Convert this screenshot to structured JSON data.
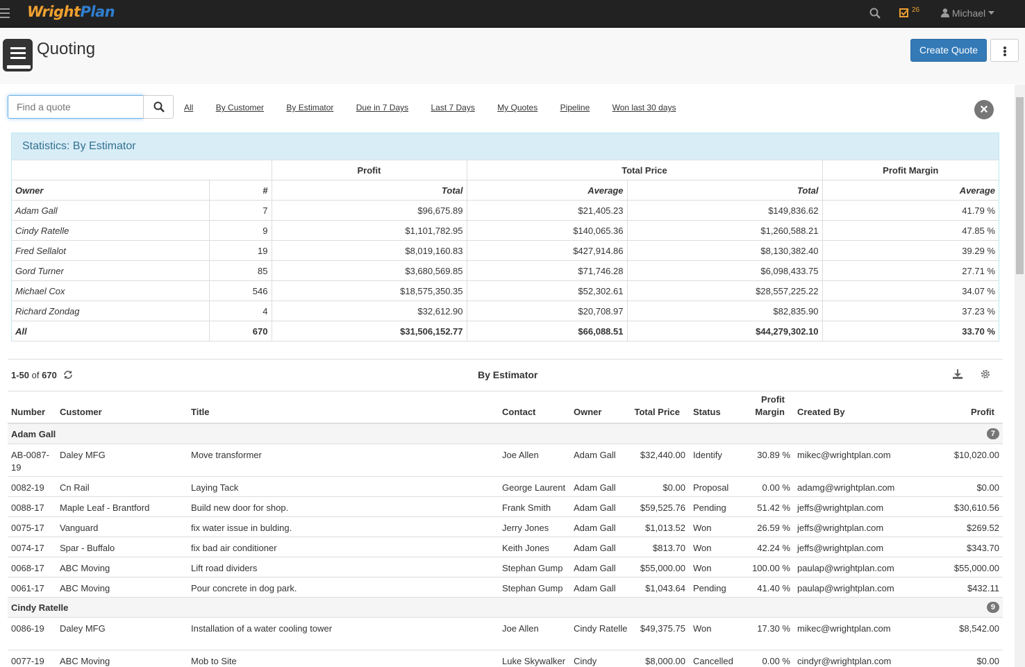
{
  "topbar": {
    "brand_a": "Wright",
    "brand_b": "Plan",
    "task_count": "26",
    "user": "Michael"
  },
  "header": {
    "title": "Quoting",
    "create_label": "Create Quote"
  },
  "search": {
    "placeholder": "Find a quote"
  },
  "filters": [
    "All",
    "By Customer",
    "By Estimator",
    "Due in 7 Days",
    "Last 7 Days",
    "My Quotes",
    "Pipeline",
    "Won last 30 days"
  ],
  "stats": {
    "heading": "Statistics: By Estimator",
    "groups": {
      "profit": "Profit",
      "total_price": "Total Price",
      "profit_margin": "Profit Margin"
    },
    "cols": {
      "owner": "Owner",
      "num": "#",
      "total": "Total",
      "average": "Average",
      "total2": "Total",
      "average2": "Average"
    },
    "rows": [
      [
        "Adam Gall",
        "7",
        "$96,675.89",
        "$21,405.23",
        "$149,836.62",
        "41.79 %"
      ],
      [
        "Cindy Ratelle",
        "9",
        "$1,101,782.95",
        "$140,065.36",
        "$1,260,588.21",
        "47.85 %"
      ],
      [
        "Fred Sellalot",
        "19",
        "$8,019,160.83",
        "$427,914.86",
        "$8,130,382.40",
        "39.29 %"
      ],
      [
        "Gord Turner",
        "85",
        "$3,680,569.85",
        "$71,746.28",
        "$6,098,433.75",
        "27.71 %"
      ],
      [
        "Michael Cox",
        "546",
        "$18,575,350.35",
        "$52,302.61",
        "$28,557,225.22",
        "34.07 %"
      ],
      [
        "Richard Zondag",
        "4",
        "$32,612.90",
        "$20,708.97",
        "$82,835.90",
        "37.23 %"
      ],
      [
        "All",
        "670",
        "$31,506,152.77",
        "$66,088.51",
        "$44,279,302.10",
        "33.70 %"
      ]
    ]
  },
  "list": {
    "range": "1-50",
    "of": "of",
    "total": "670",
    "title": "By Estimator",
    "headers": {
      "number": "Number",
      "customer": "Customer",
      "title": "Title",
      "contact": "Contact",
      "owner": "Owner",
      "total_price": "Total Price",
      "status": "Status",
      "profit_margin_1": "Profit",
      "profit_margin_2": "Margin",
      "created_by": "Created By",
      "profit": "Profit"
    },
    "groups": [
      {
        "name": "Adam Gall",
        "count": "7",
        "rows": [
          {
            "number": "AB-0087-19",
            "customer": "Daley MFG",
            "title": "Move transformer",
            "contact": "Joe Allen",
            "owner": "Adam Gall",
            "total_price": "$32,440.00",
            "status": "Identify",
            "margin": "30.89 %",
            "created_by": "mikec@wrightplan.com",
            "profit": "$10,020.00"
          },
          {
            "number": "0082-19",
            "customer": "Cn Rail",
            "title": "Laying Tack",
            "contact": "George Laurent",
            "owner": "Adam Gall",
            "total_price": "$0.00",
            "status": "Proposal",
            "margin": "0.00 %",
            "created_by": "adamg@wrightplan.com",
            "profit": "$0.00"
          },
          {
            "number": "0088-17",
            "customer": "Maple Leaf - Brantford",
            "title": "Build new door for shop.",
            "contact": "Frank Smith",
            "owner": "Adam Gall",
            "total_price": "$59,525.76",
            "status": "Pending",
            "margin": "51.42 %",
            "created_by": "jeffs@wrightplan.com",
            "profit": "$30,610.56"
          },
          {
            "number": "0075-17",
            "customer": "Vanguard",
            "title": "fix water issue in bulding.",
            "contact": "Jerry Jones",
            "owner": "Adam Gall",
            "total_price": "$1,013.52",
            "status": "Won",
            "margin": "26.59 %",
            "created_by": "jeffs@wrightplan.com",
            "profit": "$269.52"
          },
          {
            "number": "0074-17",
            "customer": "Spar - Buffalo",
            "title": "fix bad air conditioner",
            "contact": "Keith Jones",
            "owner": "Adam Gall",
            "total_price": "$813.70",
            "status": "Won",
            "margin": "42.24 %",
            "created_by": "jeffs@wrightplan.com",
            "profit": "$343.70"
          },
          {
            "number": "0068-17",
            "customer": "ABC Moving",
            "title": "Lift road dividers",
            "contact": "Stephan Gump",
            "owner": "Adam Gall",
            "total_price": "$55,000.00",
            "status": "Won",
            "margin": "100.00 %",
            "created_by": "paulap@wrightplan.com",
            "profit": "$55,000.00"
          },
          {
            "number": "0061-17",
            "customer": "ABC Moving",
            "title": "Pour concrete in dog park.",
            "contact": "Stephan Gump",
            "owner": "Adam Gall",
            "total_price": "$1,043.64",
            "status": "Pending",
            "margin": "41.40 %",
            "created_by": "paulap@wrightplan.com",
            "profit": "$432.11"
          }
        ]
      },
      {
        "name": "Cindy Ratelle",
        "count": "9",
        "rows": [
          {
            "number": "0086-19",
            "customer": "Daley MFG",
            "title": "Installation of a water cooling tower",
            "contact": "Joe Allen",
            "owner": "Cindy Ratelle",
            "total_price": "$49,375.75",
            "status": "Won",
            "margin": "17.30 %",
            "created_by": "mikec@wrightplan.com",
            "profit": "$8,542.00"
          },
          {
            "number": "0077-19",
            "customer": "ABC Moving",
            "title": "Mob to Site",
            "contact": "Luke Skywalker",
            "owner": "Cindy",
            "total_price": "$8,000.00",
            "status": "Cancelled",
            "margin": "0.00 %",
            "created_by": "cindyr@wrightplan.com",
            "profit": "$0.00"
          }
        ]
      }
    ]
  }
}
